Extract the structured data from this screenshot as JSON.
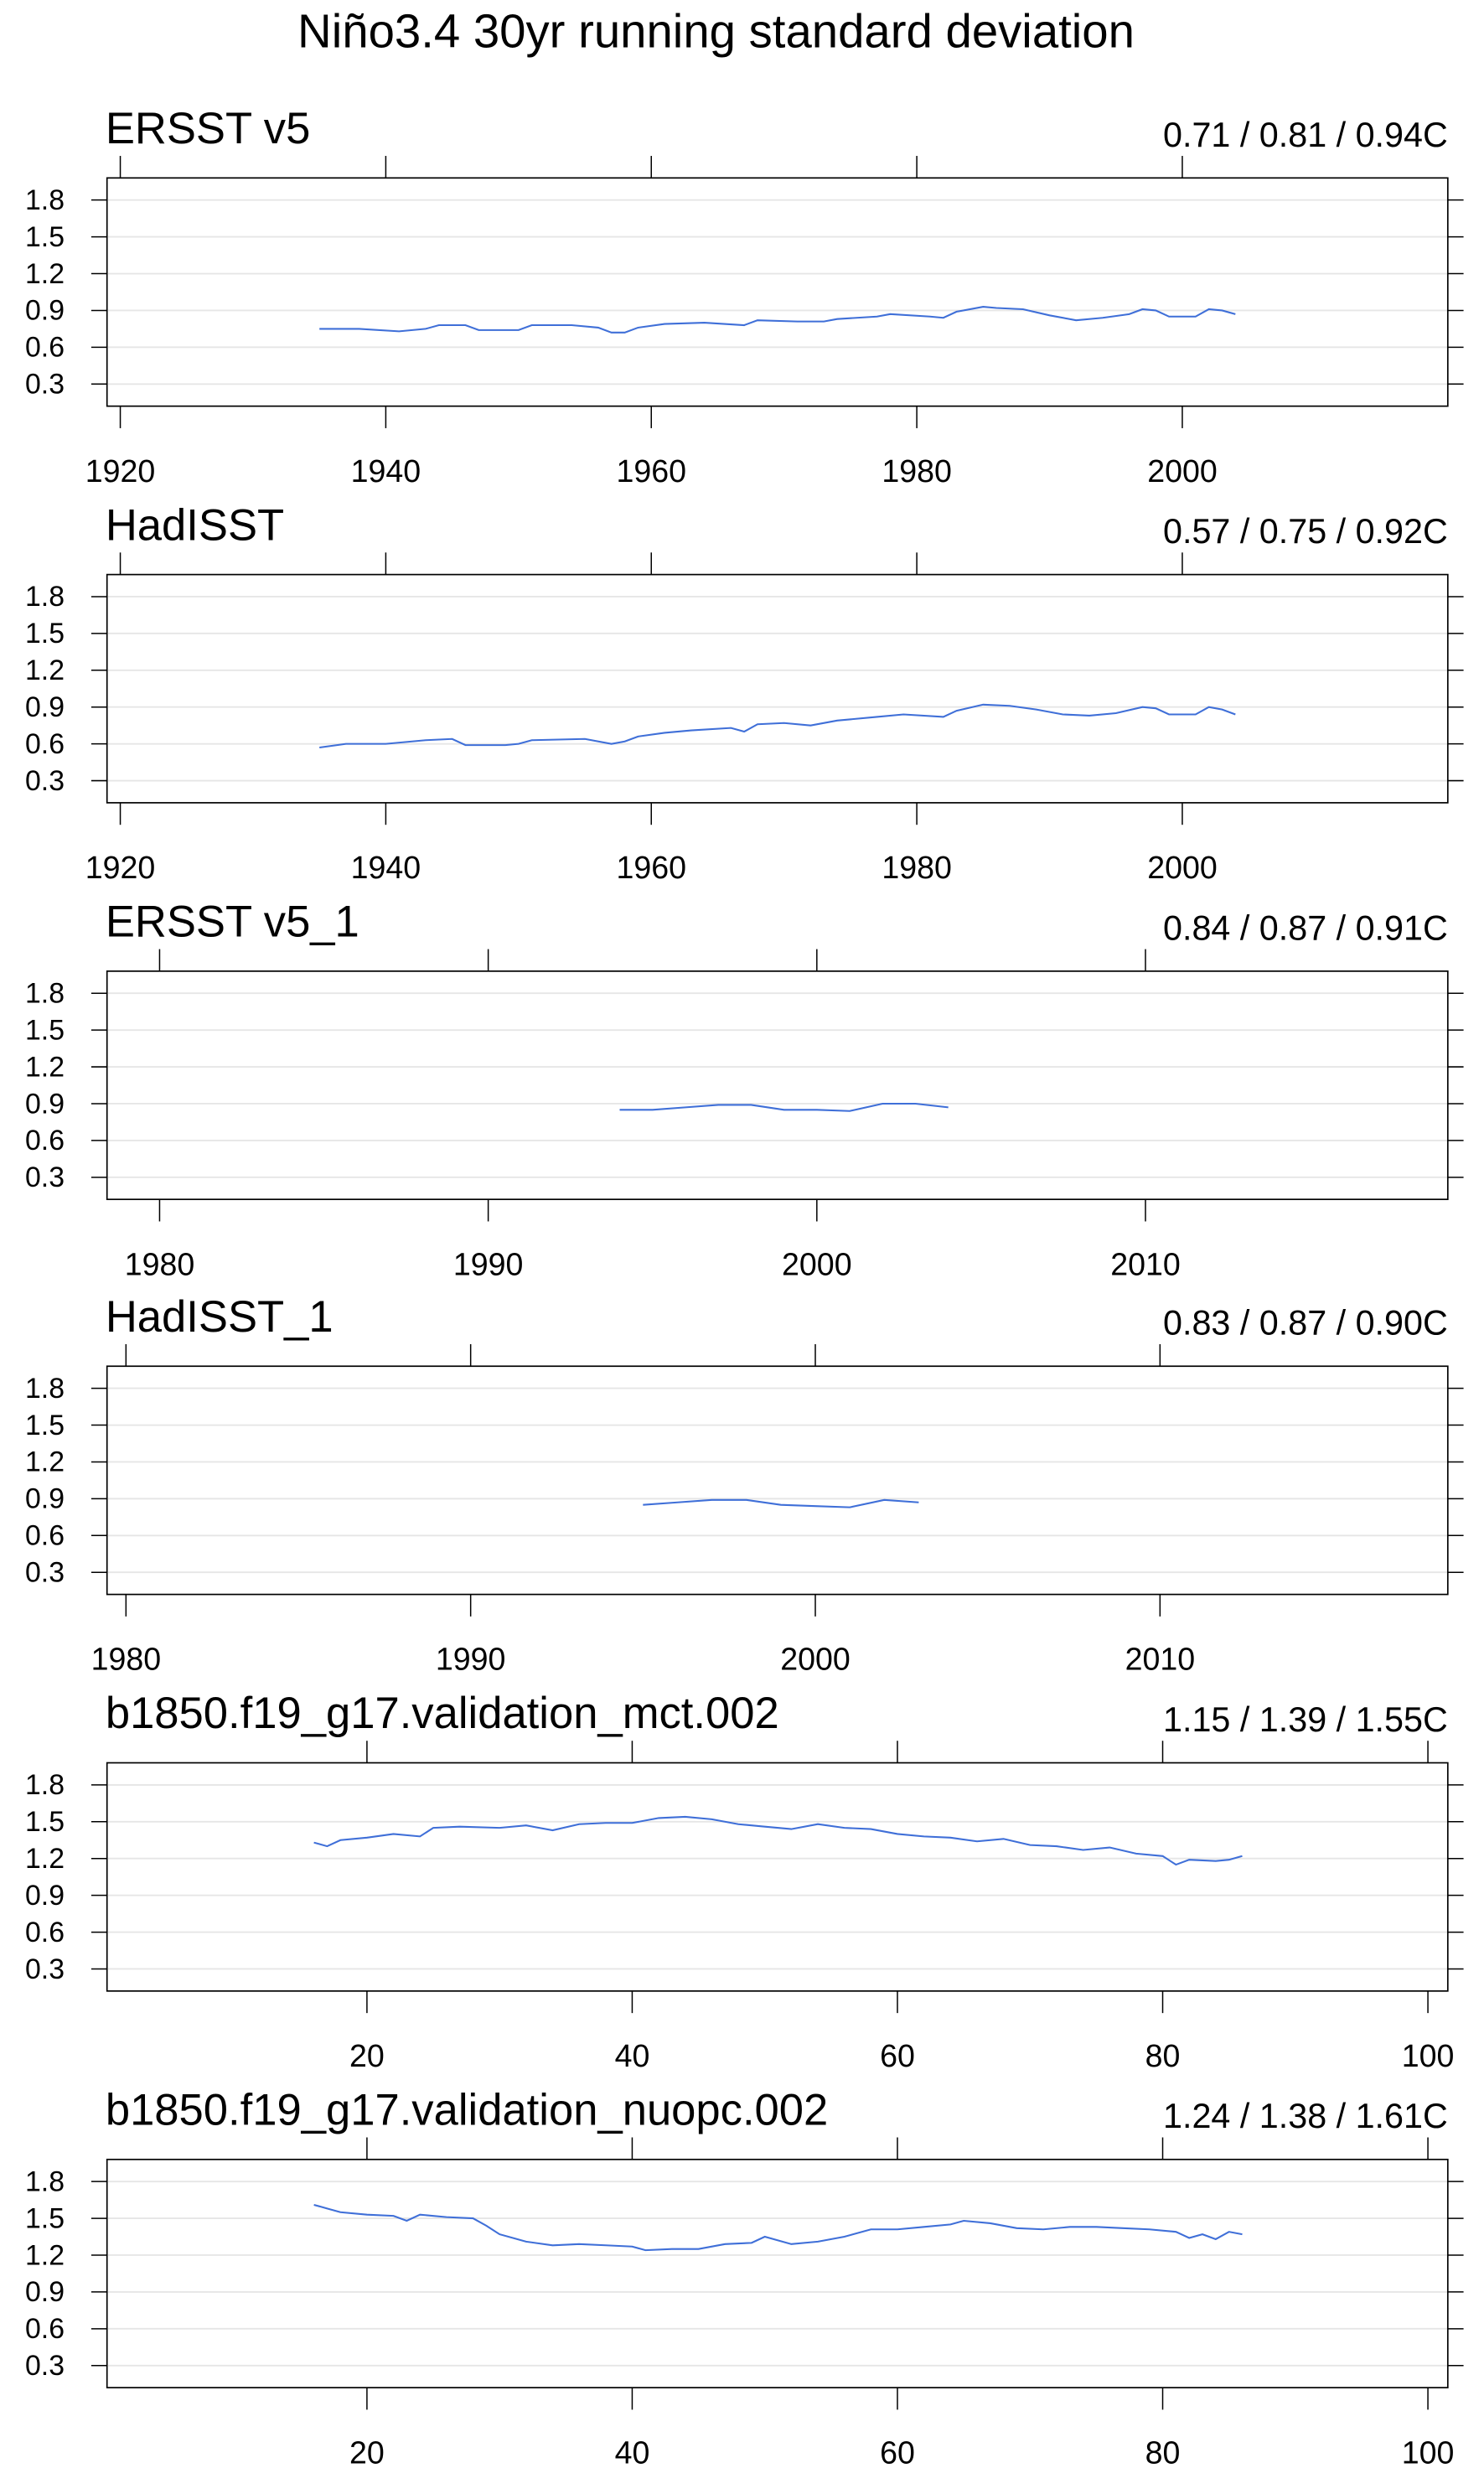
{
  "title": "Niño3.4 30yr running standard deviation",
  "chart_data": [
    {
      "type": "line",
      "title": "ERSST v5",
      "subtitle": "0.71 / 0.81 / 0.94C",
      "x": [
        1935,
        1938,
        1941,
        1943,
        1944,
        1946,
        1947,
        1950,
        1951,
        1954,
        1956,
        1957,
        1958,
        1959,
        1961,
        1964,
        1967,
        1968,
        1971,
        1973,
        1974,
        1977,
        1978,
        1981,
        1982,
        1983,
        1985,
        1986,
        1988,
        1990,
        1992,
        1994,
        1996,
        1997,
        1998,
        1999,
        2001,
        2002,
        2003,
        2004
      ],
      "series": [
        {
          "color": "#3f6fd8",
          "values": [
            0.75,
            0.75,
            0.73,
            0.75,
            0.78,
            0.78,
            0.74,
            0.74,
            0.78,
            0.78,
            0.76,
            0.72,
            0.72,
            0.76,
            0.79,
            0.8,
            0.78,
            0.82,
            0.81,
            0.81,
            0.83,
            0.85,
            0.87,
            0.85,
            0.84,
            0.89,
            0.93,
            0.92,
            0.91,
            0.86,
            0.82,
            0.84,
            0.87,
            0.91,
            0.9,
            0.85,
            0.85,
            0.91,
            0.9,
            0.87
          ]
        }
      ],
      "xlim": [
        1919,
        2020
      ],
      "xticks": [
        1920,
        1940,
        1960,
        1980,
        2000
      ],
      "ylim": [
        0.12,
        1.98
      ],
      "yticks": [
        0.3,
        0.6,
        0.9,
        1.2,
        1.5,
        1.8
      ],
      "grid": true
    },
    {
      "type": "line",
      "title": "HadISST",
      "subtitle": "0.57 / 0.75 / 0.92C",
      "x": [
        1935,
        1937,
        1940,
        1943,
        1945,
        1946,
        1949,
        1950,
        1951,
        1955,
        1957,
        1958,
        1959,
        1961,
        1963,
        1966,
        1967,
        1968,
        1970,
        1972,
        1974,
        1977,
        1979,
        1982,
        1983,
        1985,
        1987,
        1989,
        1991,
        1993,
        1995,
        1997,
        1998,
        1999,
        2001,
        2002,
        2003,
        2004
      ],
      "series": [
        {
          "color": "#3f6fd8",
          "values": [
            0.57,
            0.6,
            0.6,
            0.63,
            0.64,
            0.59,
            0.59,
            0.6,
            0.63,
            0.64,
            0.6,
            0.62,
            0.66,
            0.69,
            0.71,
            0.73,
            0.7,
            0.76,
            0.77,
            0.75,
            0.79,
            0.82,
            0.84,
            0.82,
            0.87,
            0.92,
            0.91,
            0.88,
            0.84,
            0.83,
            0.85,
            0.9,
            0.89,
            0.84,
            0.84,
            0.9,
            0.88,
            0.84
          ]
        }
      ],
      "xlim": [
        1919,
        2020
      ],
      "xticks": [
        1920,
        1940,
        1960,
        1980,
        2000
      ],
      "ylim": [
        0.12,
        1.98
      ],
      "yticks": [
        0.3,
        0.6,
        0.9,
        1.2,
        1.5,
        1.8
      ],
      "grid": true
    },
    {
      "type": "line",
      "title": "ERSST v5_1",
      "subtitle": "0.84 / 0.87 / 0.91C",
      "x": [
        1994,
        1995,
        1996,
        1997,
        1998,
        1999,
        2000,
        2001,
        2002,
        2003,
        2004
      ],
      "series": [
        {
          "color": "#3f6fd8",
          "values": [
            0.85,
            0.85,
            0.87,
            0.89,
            0.89,
            0.85,
            0.85,
            0.84,
            0.9,
            0.9,
            0.87
          ]
        }
      ],
      "xlim": [
        1978.4,
        2019.2
      ],
      "xticks": [
        1980,
        1990,
        2000,
        2010
      ],
      "ylim": [
        0.12,
        1.98
      ],
      "yticks": [
        0.3,
        0.6,
        0.9,
        1.2,
        1.5,
        1.8
      ],
      "grid": true
    },
    {
      "type": "line",
      "title": "HadISST_1",
      "subtitle": "0.83 / 0.87 / 0.90C",
      "x": [
        1995,
        1996,
        1997,
        1998,
        1999,
        2000,
        2001,
        2002,
        2003
      ],
      "series": [
        {
          "color": "#3f6fd8",
          "values": [
            0.85,
            0.87,
            0.89,
            0.89,
            0.85,
            0.84,
            0.83,
            0.89,
            0.87
          ]
        }
      ],
      "xlim": [
        1979.45,
        2018.35
      ],
      "xticks": [
        1980,
        1990,
        2000,
        2010
      ],
      "ylim": [
        0.12,
        1.98
      ],
      "yticks": [
        0.3,
        0.6,
        0.9,
        1.2,
        1.5,
        1.8
      ],
      "grid": true
    },
    {
      "type": "line",
      "title": "b1850.f19_g17.validation_mct.002",
      "subtitle": "1.15 / 1.39 / 1.55C",
      "x": [
        16,
        17,
        18,
        20,
        22,
        24,
        25,
        27,
        30,
        32,
        34,
        36,
        38,
        40,
        42,
        44,
        46,
        48,
        50,
        52,
        54,
        56,
        58,
        60,
        62,
        64,
        66,
        68,
        70,
        72,
        74,
        76,
        78,
        80,
        81,
        82,
        84,
        85,
        86
      ],
      "series": [
        {
          "color": "#3f6fd8",
          "values": [
            1.33,
            1.3,
            1.35,
            1.37,
            1.4,
            1.38,
            1.45,
            1.46,
            1.45,
            1.47,
            1.43,
            1.48,
            1.49,
            1.49,
            1.53,
            1.54,
            1.52,
            1.48,
            1.46,
            1.44,
            1.48,
            1.45,
            1.44,
            1.4,
            1.38,
            1.37,
            1.34,
            1.36,
            1.31,
            1.3,
            1.27,
            1.29,
            1.24,
            1.22,
            1.15,
            1.19,
            1.18,
            1.19,
            1.22
          ]
        }
      ],
      "xlim": [
        0.4,
        101.5
      ],
      "xticks": [
        20,
        40,
        60,
        80,
        100
      ],
      "ylim": [
        0.12,
        1.98
      ],
      "yticks": [
        0.3,
        0.6,
        0.9,
        1.2,
        1.5,
        1.8
      ],
      "grid": true
    },
    {
      "type": "line",
      "title": "b1850.f19_g17.validation_nuopc.002",
      "subtitle": "1.24 / 1.38 / 1.61C",
      "x": [
        16,
        17,
        18,
        20,
        22,
        23,
        24,
        26,
        28,
        29,
        30,
        32,
        34,
        36,
        38,
        40,
        41,
        43,
        45,
        47,
        49,
        50,
        52,
        54,
        56,
        58,
        60,
        62,
        64,
        65,
        67,
        69,
        71,
        73,
        75,
        77,
        79,
        81,
        82,
        83,
        84,
        85,
        86
      ],
      "series": [
        {
          "color": "#3f6fd8",
          "values": [
            1.61,
            1.58,
            1.55,
            1.53,
            1.52,
            1.48,
            1.53,
            1.51,
            1.5,
            1.44,
            1.37,
            1.31,
            1.28,
            1.29,
            1.28,
            1.27,
            1.24,
            1.25,
            1.25,
            1.29,
            1.3,
            1.35,
            1.29,
            1.31,
            1.35,
            1.41,
            1.41,
            1.43,
            1.45,
            1.48,
            1.46,
            1.42,
            1.41,
            1.43,
            1.43,
            1.42,
            1.41,
            1.39,
            1.34,
            1.37,
            1.33,
            1.39,
            1.37
          ]
        }
      ],
      "xlim": [
        0.4,
        101.5
      ],
      "xticks": [
        20,
        40,
        60,
        80,
        100
      ],
      "ylim": [
        0.12,
        1.98
      ],
      "yticks": [
        0.3,
        0.6,
        0.9,
        1.2,
        1.5,
        1.8
      ],
      "grid": true
    }
  ]
}
